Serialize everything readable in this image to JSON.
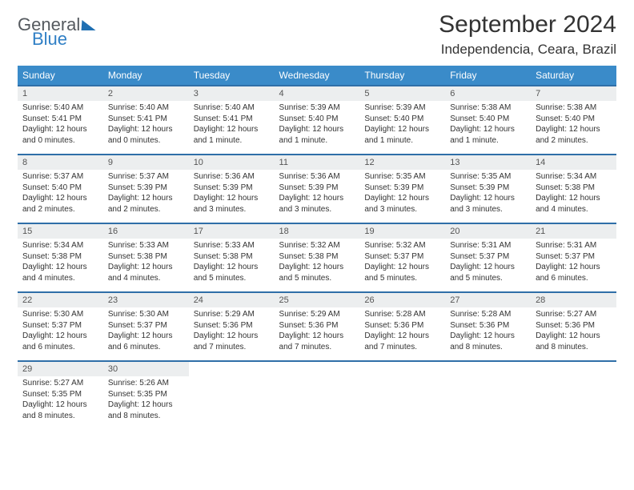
{
  "logo": {
    "word1": "General",
    "word2": "Blue"
  },
  "title": "September 2024",
  "location": "Independencia, Ceara, Brazil",
  "daynames": [
    "Sunday",
    "Monday",
    "Tuesday",
    "Wednesday",
    "Thursday",
    "Friday",
    "Saturday"
  ],
  "colors": {
    "header_bg": "#3a8bc9",
    "header_border": "#2f6fa8",
    "daynum_bg": "#eceeef",
    "text": "#333333",
    "logo_blue": "#2f7fc5",
    "logo_gray": "#555a5f"
  },
  "font": {
    "title_size": 30,
    "location_size": 17,
    "dayname_size": 12,
    "daynum_size": 11,
    "cell_size": 10
  },
  "weeks": [
    [
      {
        "n": "1",
        "sr": "5:40 AM",
        "ss": "5:41 PM",
        "dl": "12 hours and 0 minutes."
      },
      {
        "n": "2",
        "sr": "5:40 AM",
        "ss": "5:41 PM",
        "dl": "12 hours and 0 minutes."
      },
      {
        "n": "3",
        "sr": "5:40 AM",
        "ss": "5:41 PM",
        "dl": "12 hours and 1 minute."
      },
      {
        "n": "4",
        "sr": "5:39 AM",
        "ss": "5:40 PM",
        "dl": "12 hours and 1 minute."
      },
      {
        "n": "5",
        "sr": "5:39 AM",
        "ss": "5:40 PM",
        "dl": "12 hours and 1 minute."
      },
      {
        "n": "6",
        "sr": "5:38 AM",
        "ss": "5:40 PM",
        "dl": "12 hours and 1 minute."
      },
      {
        "n": "7",
        "sr": "5:38 AM",
        "ss": "5:40 PM",
        "dl": "12 hours and 2 minutes."
      }
    ],
    [
      {
        "n": "8",
        "sr": "5:37 AM",
        "ss": "5:40 PM",
        "dl": "12 hours and 2 minutes."
      },
      {
        "n": "9",
        "sr": "5:37 AM",
        "ss": "5:39 PM",
        "dl": "12 hours and 2 minutes."
      },
      {
        "n": "10",
        "sr": "5:36 AM",
        "ss": "5:39 PM",
        "dl": "12 hours and 3 minutes."
      },
      {
        "n": "11",
        "sr": "5:36 AM",
        "ss": "5:39 PM",
        "dl": "12 hours and 3 minutes."
      },
      {
        "n": "12",
        "sr": "5:35 AM",
        "ss": "5:39 PM",
        "dl": "12 hours and 3 minutes."
      },
      {
        "n": "13",
        "sr": "5:35 AM",
        "ss": "5:39 PM",
        "dl": "12 hours and 3 minutes."
      },
      {
        "n": "14",
        "sr": "5:34 AM",
        "ss": "5:38 PM",
        "dl": "12 hours and 4 minutes."
      }
    ],
    [
      {
        "n": "15",
        "sr": "5:34 AM",
        "ss": "5:38 PM",
        "dl": "12 hours and 4 minutes."
      },
      {
        "n": "16",
        "sr": "5:33 AM",
        "ss": "5:38 PM",
        "dl": "12 hours and 4 minutes."
      },
      {
        "n": "17",
        "sr": "5:33 AM",
        "ss": "5:38 PM",
        "dl": "12 hours and 5 minutes."
      },
      {
        "n": "18",
        "sr": "5:32 AM",
        "ss": "5:38 PM",
        "dl": "12 hours and 5 minutes."
      },
      {
        "n": "19",
        "sr": "5:32 AM",
        "ss": "5:37 PM",
        "dl": "12 hours and 5 minutes."
      },
      {
        "n": "20",
        "sr": "5:31 AM",
        "ss": "5:37 PM",
        "dl": "12 hours and 5 minutes."
      },
      {
        "n": "21",
        "sr": "5:31 AM",
        "ss": "5:37 PM",
        "dl": "12 hours and 6 minutes."
      }
    ],
    [
      {
        "n": "22",
        "sr": "5:30 AM",
        "ss": "5:37 PM",
        "dl": "12 hours and 6 minutes."
      },
      {
        "n": "23",
        "sr": "5:30 AM",
        "ss": "5:37 PM",
        "dl": "12 hours and 6 minutes."
      },
      {
        "n": "24",
        "sr": "5:29 AM",
        "ss": "5:36 PM",
        "dl": "12 hours and 7 minutes."
      },
      {
        "n": "25",
        "sr": "5:29 AM",
        "ss": "5:36 PM",
        "dl": "12 hours and 7 minutes."
      },
      {
        "n": "26",
        "sr": "5:28 AM",
        "ss": "5:36 PM",
        "dl": "12 hours and 7 minutes."
      },
      {
        "n": "27",
        "sr": "5:28 AM",
        "ss": "5:36 PM",
        "dl": "12 hours and 8 minutes."
      },
      {
        "n": "28",
        "sr": "5:27 AM",
        "ss": "5:36 PM",
        "dl": "12 hours and 8 minutes."
      }
    ],
    [
      {
        "n": "29",
        "sr": "5:27 AM",
        "ss": "5:35 PM",
        "dl": "12 hours and 8 minutes."
      },
      {
        "n": "30",
        "sr": "5:26 AM",
        "ss": "5:35 PM",
        "dl": "12 hours and 8 minutes."
      },
      null,
      null,
      null,
      null,
      null
    ]
  ],
  "labels": {
    "sunrise": "Sunrise:",
    "sunset": "Sunset:",
    "daylight": "Daylight:"
  }
}
